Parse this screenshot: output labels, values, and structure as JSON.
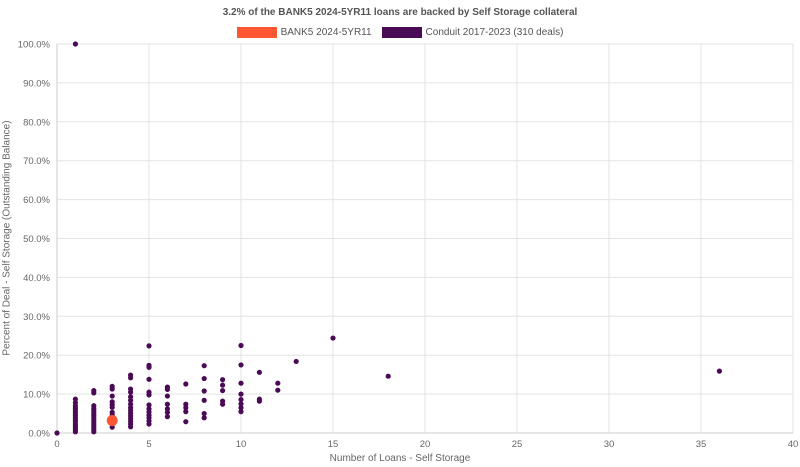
{
  "chart_data": {
    "type": "scatter",
    "title": "3.2% of the BANK5 2024-5YR11 loans are backed by Self Storage collateral",
    "xlabel": "Number of Loans - Self Storage",
    "ylabel": "Percent of Deal - Self Storage (Outstanding Balance)",
    "xlim": [
      0,
      40
    ],
    "ylim": [
      0,
      100
    ],
    "x_ticks": [
      "0",
      "5",
      "10",
      "15",
      "20",
      "25",
      "30",
      "35",
      "40"
    ],
    "y_ticks": [
      "0.0%",
      "10.0%",
      "20.0%",
      "30.0%",
      "40.0%",
      "50.0%",
      "60.0%",
      "70.0%",
      "80.0%",
      "90.0%",
      "100.0%"
    ],
    "grid": true,
    "legend_position": "top",
    "series": [
      {
        "name": "BANK5 2024-5YR11",
        "color": "#ff5733",
        "points": [
          [
            3,
            3.2
          ]
        ]
      },
      {
        "name": "Conduit 2017-2023 (310 deals)",
        "color": "#4a0a55",
        "points": [
          [
            0,
            0
          ],
          [
            1,
            100
          ],
          [
            1,
            0.3
          ],
          [
            1,
            0.8
          ],
          [
            1,
            1.3
          ],
          [
            1,
            1.8
          ],
          [
            1,
            2.3
          ],
          [
            1,
            2.9
          ],
          [
            1,
            3.4
          ],
          [
            1,
            4.0
          ],
          [
            1,
            4.6
          ],
          [
            1,
            5.2
          ],
          [
            1,
            5.8
          ],
          [
            1,
            6.4
          ],
          [
            1,
            7.0
          ],
          [
            1,
            7.8
          ],
          [
            1,
            8.7
          ],
          [
            2,
            0.3
          ],
          [
            2,
            0.9
          ],
          [
            2,
            1.5
          ],
          [
            2,
            2.1
          ],
          [
            2,
            2.7
          ],
          [
            2,
            3.3
          ],
          [
            2,
            3.9
          ],
          [
            2,
            4.5
          ],
          [
            2,
            5.1
          ],
          [
            2,
            5.7
          ],
          [
            2,
            6.3
          ],
          [
            2,
            7.0
          ],
          [
            2,
            10.3
          ],
          [
            2,
            10.9
          ],
          [
            3,
            1.5
          ],
          [
            3,
            2.2
          ],
          [
            3,
            4.0
          ],
          [
            3,
            4.6
          ],
          [
            3,
            5.3
          ],
          [
            3,
            6.6
          ],
          [
            3,
            7.3
          ],
          [
            3,
            8.0
          ],
          [
            3,
            9.5
          ],
          [
            3,
            11.3
          ],
          [
            3,
            12.0
          ],
          [
            4,
            1.6
          ],
          [
            4,
            2.3
          ],
          [
            4,
            3.0
          ],
          [
            4,
            3.7
          ],
          [
            4,
            4.4
          ],
          [
            4,
            5.1
          ],
          [
            4,
            5.8
          ],
          [
            4,
            6.5
          ],
          [
            4,
            7.4
          ],
          [
            4,
            8.4
          ],
          [
            4,
            9.3
          ],
          [
            4,
            10.5
          ],
          [
            4,
            11.3
          ],
          [
            4,
            14.2
          ],
          [
            4,
            14.9
          ],
          [
            5,
            2.3
          ],
          [
            5,
            3.1
          ],
          [
            5,
            3.9
          ],
          [
            5,
            4.6
          ],
          [
            5,
            5.4
          ],
          [
            5,
            6.2
          ],
          [
            5,
            7.2
          ],
          [
            5,
            9.8
          ],
          [
            5,
            10.5
          ],
          [
            5,
            13.8
          ],
          [
            5,
            16.9
          ],
          [
            5,
            17.4
          ],
          [
            5,
            22.4
          ],
          [
            6,
            4.2
          ],
          [
            6,
            5.3
          ],
          [
            6,
            6.2
          ],
          [
            6,
            7.4
          ],
          [
            6,
            9.5
          ],
          [
            6,
            11.2
          ],
          [
            6,
            11.8
          ],
          [
            7,
            2.9
          ],
          [
            7,
            5.5
          ],
          [
            7,
            6.5
          ],
          [
            7,
            7.4
          ],
          [
            7,
            12.6
          ],
          [
            8,
            3.9
          ],
          [
            8,
            5.0
          ],
          [
            8,
            8.4
          ],
          [
            8,
            10.8
          ],
          [
            8,
            14.0
          ],
          [
            8,
            17.3
          ],
          [
            9,
            7.4
          ],
          [
            9,
            8.2
          ],
          [
            9,
            10.9
          ],
          [
            9,
            12.3
          ],
          [
            9,
            13.7
          ],
          [
            10,
            5.5
          ],
          [
            10,
            6.5
          ],
          [
            10,
            7.5
          ],
          [
            10,
            8.6
          ],
          [
            10,
            10.0
          ],
          [
            10,
            12.8
          ],
          [
            10,
            17.5
          ],
          [
            10,
            22.5
          ],
          [
            11,
            8.2
          ],
          [
            11,
            8.7
          ],
          [
            11,
            15.6
          ],
          [
            12,
            11.0
          ],
          [
            12,
            12.8
          ],
          [
            13,
            18.4
          ],
          [
            15,
            24.4
          ],
          [
            18,
            14.6
          ],
          [
            36,
            15.9
          ]
        ]
      }
    ]
  }
}
